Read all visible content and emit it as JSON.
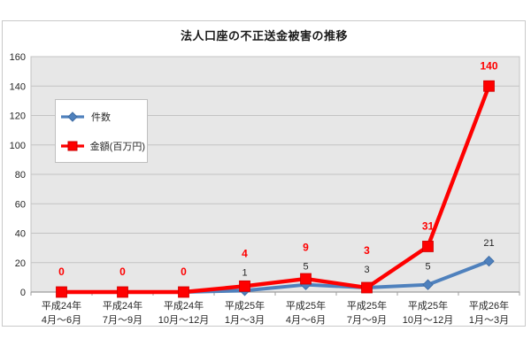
{
  "chart_data": {
    "type": "line",
    "title": "法人口座の不正送金被害の推移",
    "categories": [
      [
        "平成24年",
        "4月〜6月"
      ],
      [
        "平成24年",
        "7月〜9月"
      ],
      [
        "平成24年",
        "10月〜12月"
      ],
      [
        "平成25年",
        "1月〜3月"
      ],
      [
        "平成25年",
        "4月〜6月"
      ],
      [
        "平成25年",
        "7月〜9月"
      ],
      [
        "平成25年",
        "10月〜12月"
      ],
      [
        "平成26年",
        "1月〜3月"
      ]
    ],
    "series": [
      {
        "key": "cases",
        "name": "件数",
        "marker": "diamond",
        "color": "#4f81bd",
        "marker_border": "#3d6ba3",
        "values": [
          0,
          0,
          0,
          1,
          5,
          3,
          5,
          21
        ],
        "data_labels": [
          "",
          "",
          "",
          "1",
          "5",
          "3",
          "5",
          "21"
        ],
        "label_color": "#262626",
        "label_bold": false
      },
      {
        "key": "amount",
        "name": "金額(百万円)",
        "marker": "square",
        "color": "#fe0000",
        "marker_border": "#cc0000",
        "values": [
          0,
          0,
          0,
          4,
          9,
          3,
          31,
          140
        ],
        "data_labels": [
          "0",
          "0",
          "0",
          "4",
          "9",
          "3",
          "31",
          "140"
        ],
        "label_color": "#fe0000",
        "label_bold": true
      }
    ],
    "y_axis": {
      "min": 0,
      "max": 160,
      "step": 20,
      "tick_labels": [
        "0",
        "20",
        "40",
        "60",
        "80",
        "100",
        "120",
        "140",
        "160"
      ]
    },
    "legend": {
      "position": "upper-left-inside",
      "entries": [
        "件数",
        "金額(百万円)"
      ]
    },
    "grid": true,
    "plot_background": "#e7e7e7",
    "gridline_color": "#c3c3c3",
    "axis_line_color": "#9d9d9d",
    "axis_text_color": "#262626"
  }
}
